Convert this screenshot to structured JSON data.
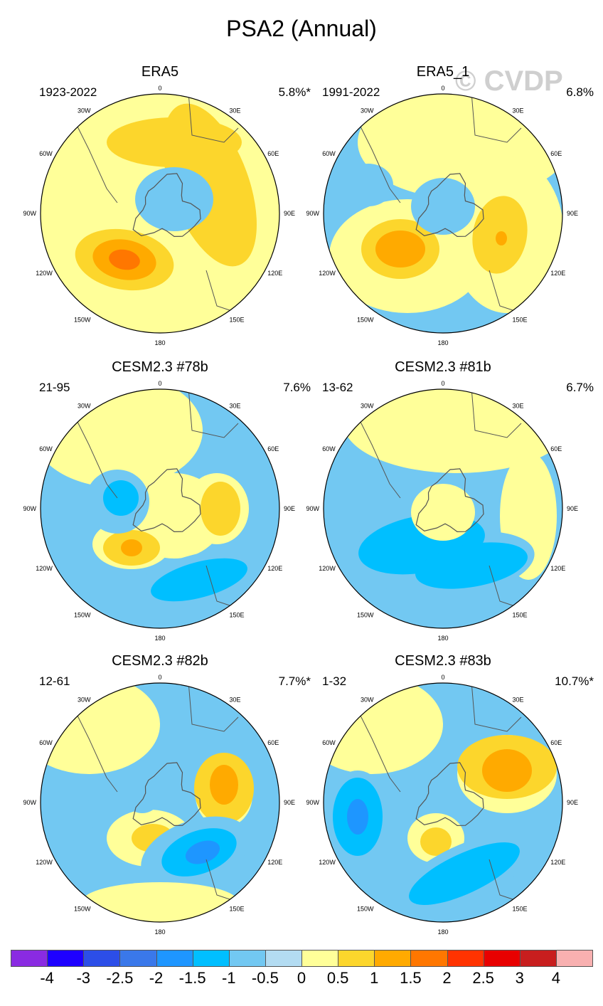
{
  "title": "PSA2 (Annual)",
  "watermark": "© CVDP",
  "lon_labels": {
    "top": "0",
    "tr": "30E",
    "r1": "60E",
    "r2": "90E",
    "r3": "120E",
    "br": "150E",
    "bottom": "180",
    "bl": "150W",
    "l3": "120W",
    "l2": "90W",
    "l1": "60W",
    "tl": "30W"
  },
  "panels": [
    {
      "name": "ERA5",
      "years": "1923-2022",
      "pct": "5.8%*"
    },
    {
      "name": "ERA5_1",
      "years": "1991-2022",
      "pct": "6.8%"
    },
    {
      "name": "CESM2.3 #78b",
      "years": "21-95",
      "pct": "7.6%"
    },
    {
      "name": "CESM2.3 #81b",
      "years": "13-62",
      "pct": "6.7%"
    },
    {
      "name": "CESM2.3 #82b",
      "years": "12-61",
      "pct": "7.7%*"
    },
    {
      "name": "CESM2.3 #83b",
      "years": "1-32",
      "pct": "10.7%*"
    }
  ],
  "colorbar": {
    "colors": [
      "#8a2be2",
      "#1e00ff",
      "#2c4ee8",
      "#3a78ea",
      "#1e96ff",
      "#00bfff",
      "#72c8f2",
      "#b3dcf2",
      "#ffff99",
      "#fcd62c",
      "#ffaa00",
      "#ff7700",
      "#ff3300",
      "#e80000",
      "#c81e1e",
      "#f8b0b0"
    ],
    "ticks": [
      "-4",
      "-3",
      "-2.5",
      "-2",
      "-1.5",
      "-1",
      "-0.5",
      "0",
      "0.5",
      "1",
      "1.5",
      "2",
      "2.5",
      "3",
      "4"
    ]
  }
}
